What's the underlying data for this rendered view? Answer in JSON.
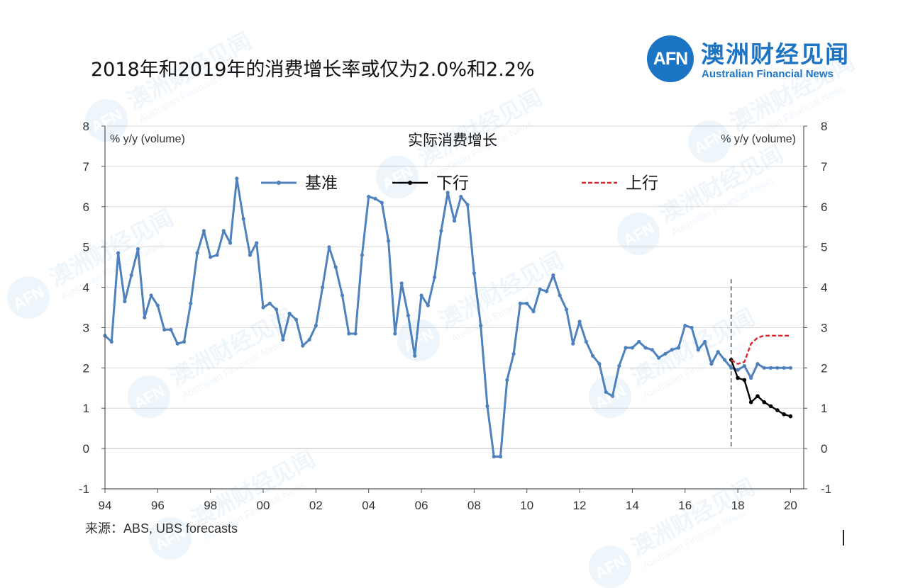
{
  "header": {
    "headline": "2018年和2019年的消费增长率或仅为2.0%和2.2%"
  },
  "logo": {
    "badge": "AFN",
    "name_cn": "澳洲财经见闻",
    "name_en": "Australian Financial News",
    "color": "#1c74c4"
  },
  "source_note": "来源：ABS, UBS forecasts",
  "chart_data": {
    "type": "line",
    "title": "实际消费增长",
    "ylabel_left": "% y/y (volume)",
    "ylabel_right": "% y/y (volume)",
    "ylim": [
      -1,
      8
    ],
    "yticks": [
      -1,
      0,
      1,
      2,
      3,
      4,
      5,
      6,
      7,
      8
    ],
    "xlim": [
      1994,
      2020.5
    ],
    "xticks": [
      {
        "value": 1994,
        "label": "94"
      },
      {
        "value": 1996,
        "label": "96"
      },
      {
        "value": 1998,
        "label": "98"
      },
      {
        "value": 2000,
        "label": "00"
      },
      {
        "value": 2002,
        "label": "02"
      },
      {
        "value": 2004,
        "label": "04"
      },
      {
        "value": 2006,
        "label": "06"
      },
      {
        "value": 2008,
        "label": "08"
      },
      {
        "value": 2010,
        "label": "10"
      },
      {
        "value": 2012,
        "label": "12"
      },
      {
        "value": 2014,
        "label": "14"
      },
      {
        "value": 2016,
        "label": "16"
      },
      {
        "value": 2018,
        "label": "18"
      },
      {
        "value": 2020,
        "label": "20"
      }
    ],
    "grid": true,
    "forecast_start": 2017.75,
    "legend": [
      {
        "key": "base",
        "label": "基准"
      },
      {
        "key": "down",
        "label": "下行"
      },
      {
        "key": "up",
        "label": "上行"
      }
    ],
    "series": [
      {
        "key": "base",
        "name": "基准",
        "color": "#4f81bd",
        "style": "solid-marker",
        "x": [
          1994,
          1994.25,
          1994.5,
          1994.75,
          1995,
          1995.25,
          1995.5,
          1995.75,
          1996,
          1996.25,
          1996.5,
          1996.75,
          1997,
          1997.25,
          1997.5,
          1997.75,
          1998,
          1998.25,
          1998.5,
          1998.75,
          1999,
          1999.25,
          1999.5,
          1999.75,
          2000,
          2000.25,
          2000.5,
          2000.75,
          2001,
          2001.25,
          2001.5,
          2001.75,
          2002,
          2002.25,
          2002.5,
          2002.75,
          2003,
          2003.25,
          2003.5,
          2003.75,
          2004,
          2004.25,
          2004.5,
          2004.75,
          2005,
          2005.25,
          2005.5,
          2005.75,
          2006,
          2006.25,
          2006.5,
          2006.75,
          2007,
          2007.25,
          2007.5,
          2007.75,
          2008,
          2008.25,
          2008.5,
          2008.75,
          2009,
          2009.25,
          2009.5,
          2009.75,
          2010,
          2010.25,
          2010.5,
          2010.75,
          2011,
          2011.25,
          2011.5,
          2011.75,
          2012,
          2012.25,
          2012.5,
          2012.75,
          2013,
          2013.25,
          2013.5,
          2013.75,
          2014,
          2014.25,
          2014.5,
          2014.75,
          2015,
          2015.25,
          2015.5,
          2015.75,
          2016,
          2016.25,
          2016.5,
          2016.75,
          2017,
          2017.25,
          2017.5,
          2017.75,
          2018,
          2018.25,
          2018.5,
          2018.75,
          2019,
          2019.25,
          2019.5,
          2019.75,
          2020
        ],
        "values": [
          2.8,
          2.65,
          4.85,
          3.65,
          4.3,
          4.95,
          3.25,
          3.8,
          3.55,
          2.95,
          2.95,
          2.6,
          2.65,
          3.6,
          4.85,
          5.4,
          4.75,
          4.8,
          5.4,
          5.1,
          6.7,
          5.7,
          4.8,
          5.1,
          3.5,
          3.6,
          3.45,
          2.7,
          3.35,
          3.2,
          2.55,
          2.7,
          3.05,
          4.0,
          5.0,
          4.5,
          3.8,
          2.85,
          2.85,
          4.8,
          6.25,
          6.2,
          6.1,
          5.15,
          2.85,
          4.1,
          3.3,
          2.3,
          3.8,
          3.55,
          4.25,
          5.4,
          6.35,
          5.65,
          6.25,
          6.05,
          4.35,
          3.05,
          1.05,
          -0.2,
          -0.2,
          1.7,
          2.35,
          3.6,
          3.6,
          3.4,
          3.95,
          3.9,
          4.3,
          3.8,
          3.45,
          2.6,
          3.15,
          2.65,
          2.3,
          2.1,
          1.4,
          1.3,
          2.05,
          2.5,
          2.5,
          2.65,
          2.5,
          2.45,
          2.25,
          2.35,
          2.45,
          2.5,
          3.05,
          3.0,
          2.45,
          2.65,
          2.1,
          2.4,
          2.2,
          2.0,
          1.95,
          2.05,
          1.75,
          2.1,
          2.0,
          2.0,
          2.0,
          2.0,
          2.0
        ]
      },
      {
        "key": "down",
        "name": "下行",
        "color": "#000000",
        "style": "solid-marker",
        "x": [
          2017.75,
          2018,
          2018.25,
          2018.5,
          2018.75,
          2019,
          2019.25,
          2019.5,
          2019.75,
          2020
        ],
        "values": [
          2.2,
          1.75,
          1.7,
          1.15,
          1.3,
          1.15,
          1.05,
          0.95,
          0.85,
          0.8
        ]
      },
      {
        "key": "up",
        "name": "上行",
        "color": "#d9262c",
        "style": "dashed",
        "x": [
          2017.75,
          2018,
          2018.25,
          2018.5,
          2018.75,
          2019,
          2019.25,
          2019.5,
          2019.75,
          2020
        ],
        "values": [
          2.2,
          2.1,
          2.15,
          2.6,
          2.75,
          2.8,
          2.8,
          2.8,
          2.8,
          2.8
        ]
      }
    ]
  },
  "watermark": {
    "badge": "AFN",
    "cn": "澳洲财经见闻",
    "en": "Australian Financial News"
  }
}
